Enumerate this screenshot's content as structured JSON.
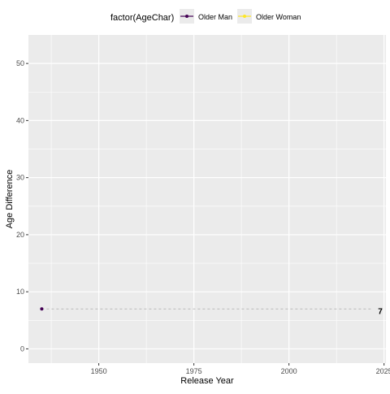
{
  "chart_data": {
    "type": "line",
    "xlabel": "Release Year",
    "ylabel": "Age Difference",
    "xlim": [
      1931.5,
      2025.5
    ],
    "ylim": [
      -2.5,
      55
    ],
    "x_ticks": [
      1950,
      1975,
      2000,
      2025
    ],
    "y_ticks": [
      0,
      10,
      20,
      30,
      40,
      50
    ],
    "grid": true,
    "legend": {
      "title": "factor(AgeChar)",
      "position": "top",
      "entries": [
        {
          "name": "Older Man",
          "color": "#440154"
        },
        {
          "name": "Older Woman",
          "color": "#FDE725"
        }
      ]
    },
    "series": [
      {
        "name": "Older Man",
        "color": "#440154",
        "points": [
          {
            "x": 1935,
            "y": 7
          }
        ]
      }
    ],
    "reference_line": {
      "y": 7,
      "x_start": 1935,
      "x_end": 2022,
      "style": "dashed",
      "color": "#aaaaaa"
    },
    "annotations": [
      {
        "text": "7",
        "x": 2024,
        "y": 6.7
      }
    ]
  }
}
